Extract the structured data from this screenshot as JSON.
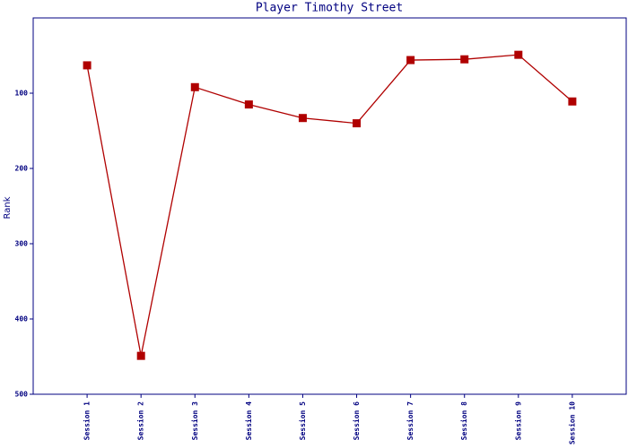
{
  "chart_data": {
    "type": "line",
    "title": "Player Timothy Street",
    "y_label": "Rank",
    "categories": [
      "Session 1",
      "Session 2",
      "Session 3",
      "Session 4",
      "Session 5",
      "Session 6",
      "Session 7",
      "Session 8",
      "Session 9",
      "Session 10"
    ],
    "series": [
      {
        "name": "Rank",
        "color": "#b00000",
        "values": [
          63,
          449,
          92,
          115,
          133,
          140,
          56,
          55,
          49,
          111
        ]
      }
    ],
    "ylim": [
      0,
      500
    ],
    "yticks": [
      100,
      200,
      300,
      400,
      500
    ],
    "y_inverted": true
  }
}
